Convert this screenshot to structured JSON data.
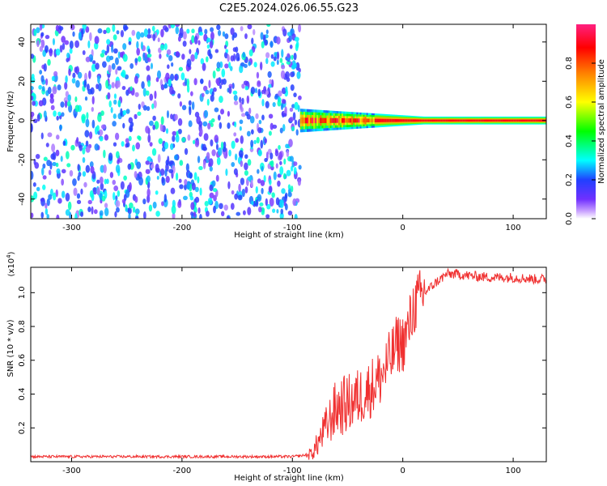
{
  "title": "C2E5.2024.026.06.55.G23",
  "chart_data": [
    {
      "type": "heatmap",
      "xlabel": "Height of straight line (km)",
      "ylabel": "Frequency (Hz)",
      "xlim": [
        -337,
        130
      ],
      "ylim": [
        -50,
        49
      ],
      "xticks": [
        -300,
        -200,
        -100,
        0,
        100
      ],
      "yticks": [
        -40,
        -20,
        0,
        20,
        40
      ],
      "colorbar": {
        "label": "Normalized spectral amplitude",
        "range": [
          0,
          1
        ],
        "ticks": [
          0.0,
          0.2,
          0.4,
          0.6,
          0.8
        ]
      },
      "regions": {
        "noise_x": [
          -337,
          -93
        ],
        "noise_freq": [
          -50,
          49
        ],
        "noise_amplitude": 0.3,
        "signal_x": [
          -93,
          130
        ],
        "signal_center_freq_hz": 0,
        "signal_halfwidth_hz_start": 6,
        "signal_halfwidth_hz_end": 2,
        "signal_peak_amplitude": 0.9
      }
    },
    {
      "type": "line",
      "xlabel": "Height of straight line (km)",
      "ylabel": "SNR (10 * v/v)",
      "yscale_label": "(x10^4)",
      "xlim": [
        -337,
        130
      ],
      "ylim": [
        0,
        1.15
      ],
      "xticks": [
        -300,
        -200,
        -100,
        0,
        100
      ],
      "yticks": [
        0.2,
        0.4,
        0.6,
        0.8,
        1.0
      ],
      "color": "#f03030",
      "series": [
        {
          "x": [
            -337,
            -300,
            -250,
            -200,
            -150,
            -100,
            -85,
            -80,
            -70,
            -60,
            -50,
            -40,
            -30,
            -20,
            -10,
            -5,
            0,
            5,
            10,
            20,
            30,
            40,
            50,
            60,
            80,
            100,
            120,
            130
          ],
          "y": [
            0.03,
            0.03,
            0.03,
            0.03,
            0.03,
            0.03,
            0.04,
            0.07,
            0.2,
            0.32,
            0.34,
            0.38,
            0.43,
            0.5,
            0.62,
            0.7,
            0.7,
            0.78,
            0.92,
            1.0,
            1.06,
            1.11,
            1.11,
            1.1,
            1.09,
            1.09,
            1.08,
            1.08
          ]
        }
      ]
    }
  ]
}
